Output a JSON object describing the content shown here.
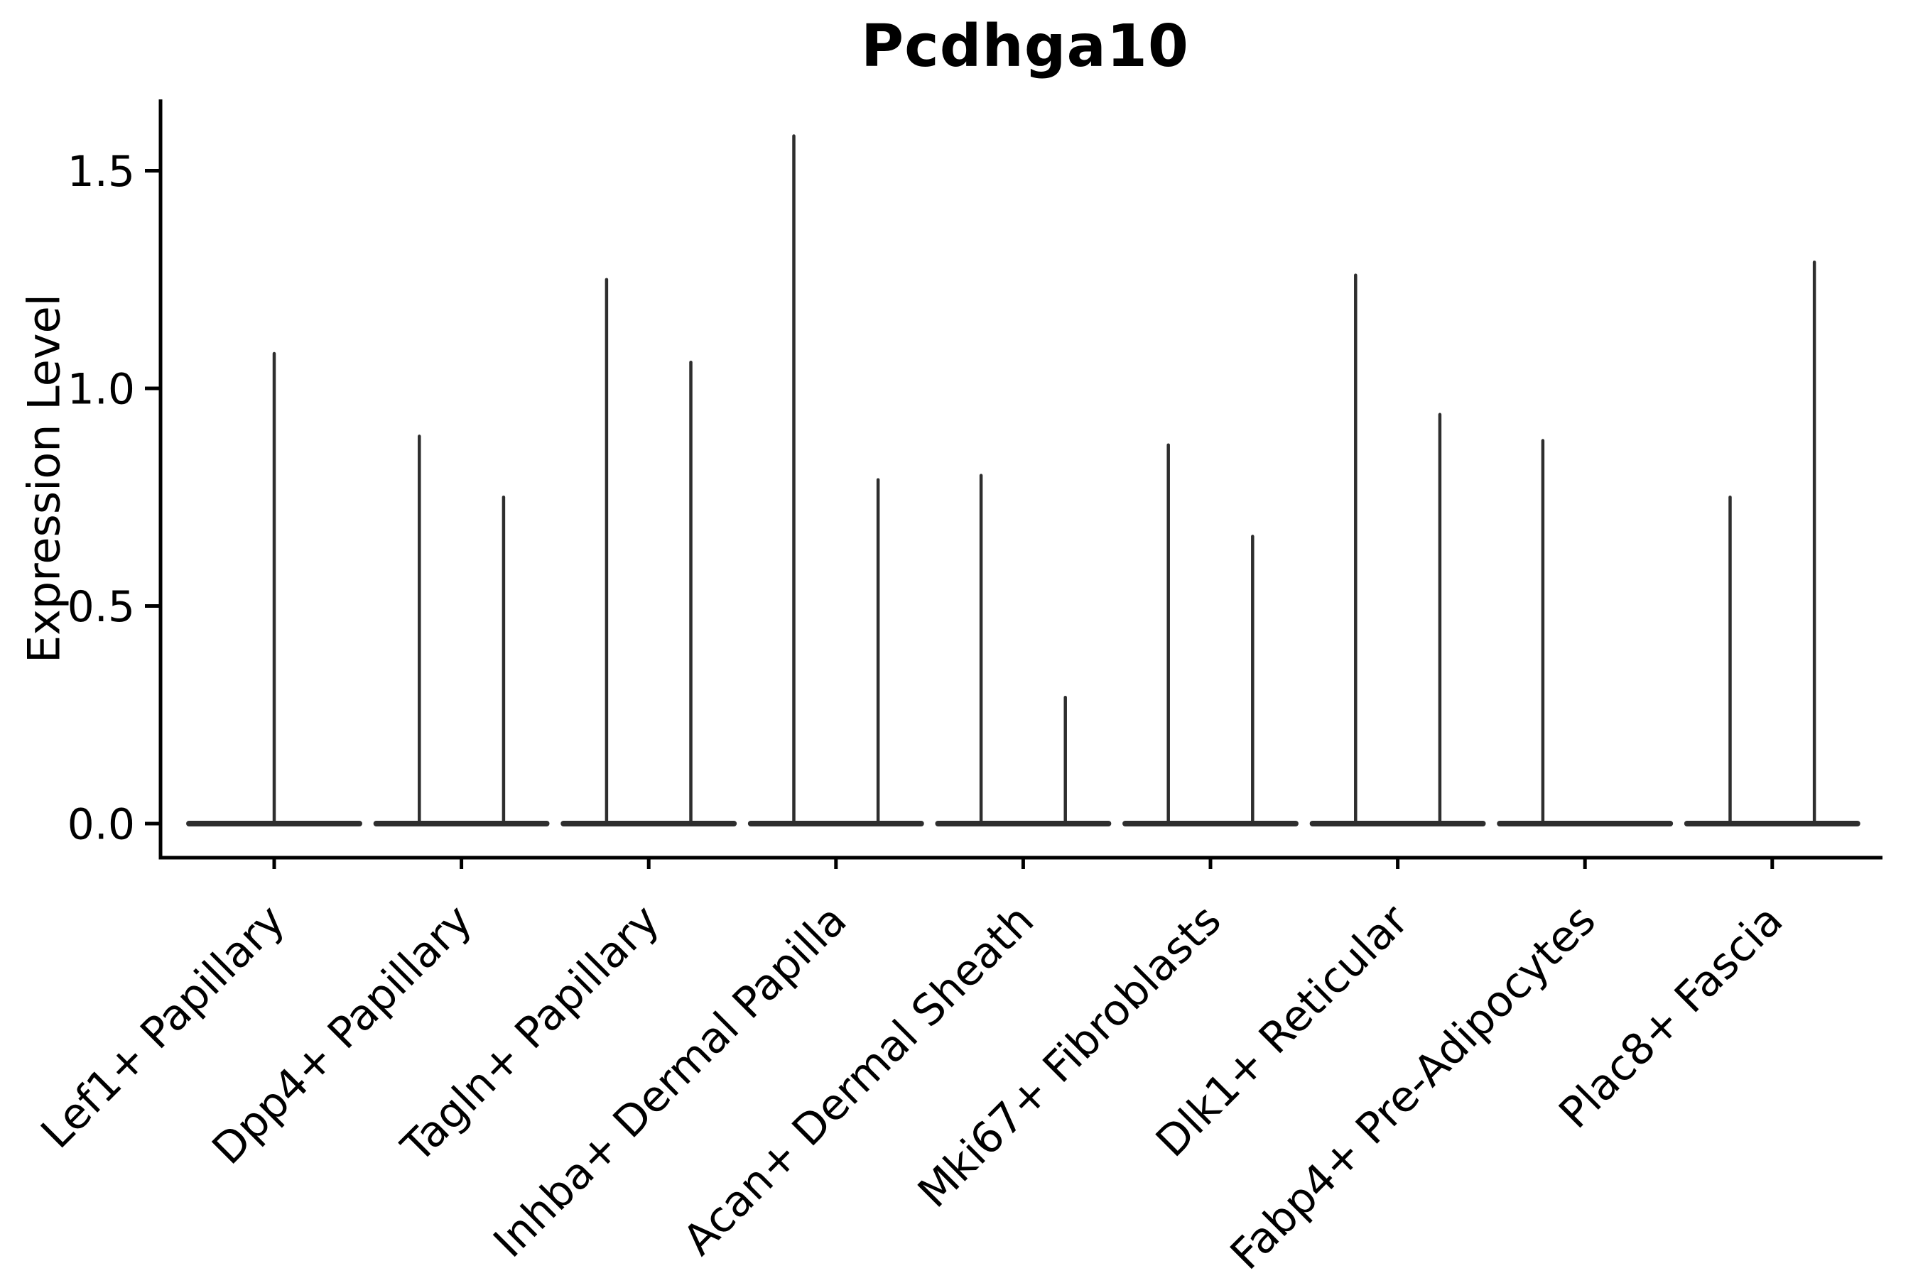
{
  "chart_data": {
    "type": "violin",
    "title": "Pcdhga10",
    "ylabel": "Expression Level",
    "xlabel": "",
    "yticks": [
      0.0,
      0.5,
      1.0,
      1.5
    ],
    "ytick_labels": [
      "0.0",
      "0.5",
      "1.0",
      "1.5"
    ],
    "ylim": [
      -0.08,
      1.66
    ],
    "grid": false,
    "legend": "none",
    "violin_color": "#2e2e2e",
    "axis_color": "#000000",
    "baseline_halfwidth_units": 0.455,
    "categories": [
      "Lef1+ Papillary",
      "Dpp4+ Papillary",
      "Tagln+ Papillary",
      "Inhba+ Dermal Papilla",
      "Acan+ Dermal Sheath",
      "Mki67+ Fibroblasts",
      "Dlk1+ Reticular",
      "Fabp4+ Pre-Adipocytes",
      "Plac8+ Fascia"
    ],
    "series": [
      {
        "category": "Lef1+ Papillary",
        "baseline_value": 0.0,
        "spikes": [
          {
            "dx": 0.0,
            "max": 1.08
          }
        ]
      },
      {
        "category": "Dpp4+ Papillary",
        "baseline_value": 0.0,
        "spikes": [
          {
            "dx": -0.225,
            "max": 0.89
          },
          {
            "dx": 0.225,
            "max": 0.75
          }
        ]
      },
      {
        "category": "Tagln+ Papillary",
        "baseline_value": 0.0,
        "spikes": [
          {
            "dx": -0.225,
            "max": 1.25
          },
          {
            "dx": 0.225,
            "max": 1.06
          }
        ]
      },
      {
        "category": "Inhba+ Dermal Papilla",
        "baseline_value": 0.0,
        "spikes": [
          {
            "dx": -0.225,
            "max": 1.58
          },
          {
            "dx": 0.225,
            "max": 0.79
          }
        ]
      },
      {
        "category": "Acan+ Dermal Sheath",
        "baseline_value": 0.0,
        "spikes": [
          {
            "dx": -0.225,
            "max": 0.8
          },
          {
            "dx": 0.225,
            "max": 0.29
          }
        ]
      },
      {
        "category": "Mki67+ Fibroblasts",
        "baseline_value": 0.0,
        "spikes": [
          {
            "dx": -0.225,
            "max": 0.87
          },
          {
            "dx": 0.225,
            "max": 0.66
          }
        ]
      },
      {
        "category": "Dlk1+ Reticular",
        "baseline_value": 0.0,
        "spikes": [
          {
            "dx": -0.225,
            "max": 1.26
          },
          {
            "dx": 0.225,
            "max": 0.94
          }
        ]
      },
      {
        "category": "Fabp4+ Pre-Adipocytes",
        "baseline_value": 0.0,
        "spikes": [
          {
            "dx": -0.225,
            "max": 0.88
          }
        ]
      },
      {
        "category": "Plac8+ Fascia",
        "baseline_value": 0.0,
        "spikes": [
          {
            "dx": -0.225,
            "max": 0.75
          },
          {
            "dx": 0.225,
            "max": 1.29
          }
        ]
      }
    ]
  }
}
